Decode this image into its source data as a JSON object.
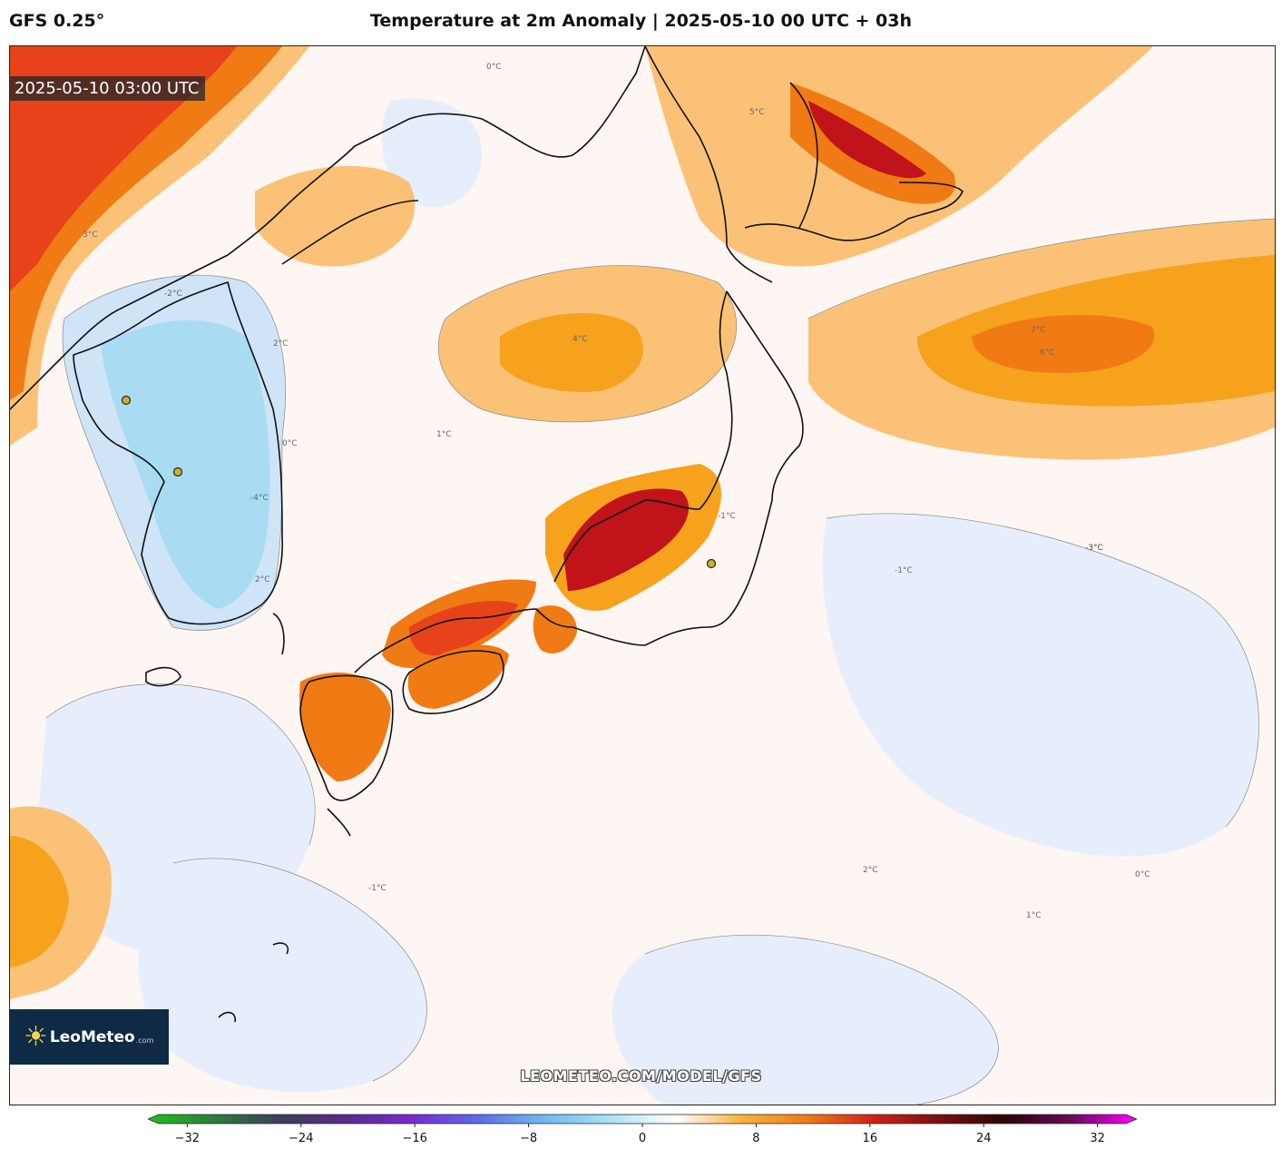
{
  "header": {
    "model": "GFS 0.25°",
    "title": "Temperature at 2m Anomaly | 2025-05-10 00 UTC + 03h"
  },
  "map": {
    "valid_time": "2025-05-10 03:00 UTC",
    "watermark": "LEOMETEO.COM/MODEL/GFS",
    "contour_labels": [
      "0°C",
      "1°C",
      "2°C",
      "3°C",
      "4°C",
      "5°C",
      "6°C",
      "7°C",
      "-1°C",
      "-2°C",
      "-3°C",
      "-4°C",
      "2°C",
      "1°C",
      "0°C",
      "-1°C",
      "-1°C",
      "0°C",
      "2°C",
      "-3°C"
    ],
    "colors": {
      "warm_1": "#fde3d8",
      "warm_2": "#fbc277",
      "warm_3": "#f7a21d",
      "warm_4": "#f07a14",
      "warm_5": "#e8421a",
      "warm_6": "#c0141a",
      "cool_1": "#e7eefb",
      "cool_2": "#cfe5f7",
      "cool_3": "#a9dcf2",
      "land_outline": "#111111"
    }
  },
  "logo": {
    "name": "LeoMeteo",
    "suffix": ".com"
  },
  "colorbar": {
    "ticks": [
      "−32",
      "−24",
      "−16",
      "−8",
      "0",
      "8",
      "16",
      "24",
      "32"
    ],
    "min": -34,
    "max": 34,
    "stops": [
      "#1fc21f",
      "#2a7d3a",
      "#3b3f5a",
      "#5a2a8c",
      "#7a2ad0",
      "#5b6be8",
      "#6fb8f0",
      "#a9e1f6",
      "#ffffff",
      "#f8b23a",
      "#f07a14",
      "#d1221a",
      "#7a1010",
      "#2a0505",
      "#6a0a5a",
      "#ff00ff"
    ]
  },
  "stations": [
    "station-pyongyang",
    "station-seoul",
    "station-tokyo"
  ]
}
